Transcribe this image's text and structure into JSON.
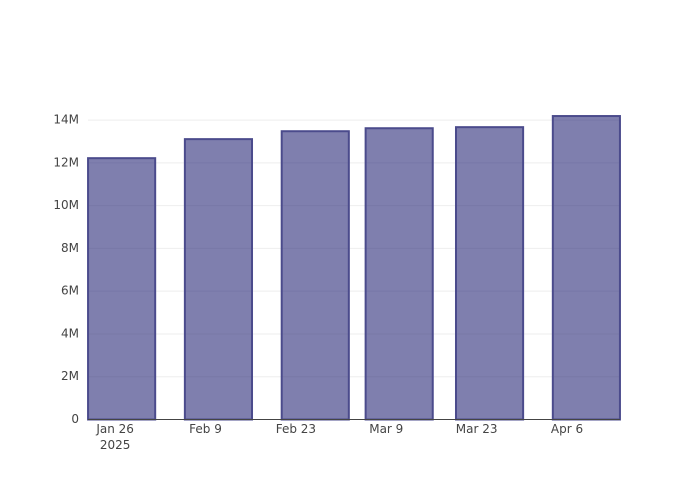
{
  "chart_data": {
    "type": "bar",
    "x": [
      "2025-01-27",
      "2025-02-11",
      "2025-02-26",
      "2025-03-11",
      "2025-03-25",
      "2025-04-09"
    ],
    "values": [
      12220000,
      13110000,
      13480000,
      13620000,
      13670000,
      14190000
    ],
    "color": "rgba(42,42,120,0.6)",
    "edge_color": "#4b4b8c",
    "bar_width_days": 10.4,
    "xlim": [
      "2025-01-21T19:00",
      "2025-04-14T05:00"
    ],
    "xticks": [
      {
        "value": "2025-01-26",
        "label": "Jan 26",
        "year": "2025"
      },
      {
        "value": "2025-02-09",
        "label": "Feb 9"
      },
      {
        "value": "2025-02-23",
        "label": "Feb 23"
      },
      {
        "value": "2025-03-09",
        "label": "Mar 9"
      },
      {
        "value": "2025-03-23",
        "label": "Mar 23"
      },
      {
        "value": "2025-04-06",
        "label": "Apr 6"
      }
    ],
    "ylim": [
      0,
      14940000
    ],
    "yticks": [
      0,
      {
        "value": 2000000,
        "label": "2M"
      },
      {
        "value": 4000000,
        "label": "4M"
      },
      {
        "value": 6000000,
        "label": "6M"
      },
      {
        "value": 8000000,
        "label": "8M"
      },
      {
        "value": 10000000,
        "label": "10M"
      },
      {
        "value": 12000000,
        "label": "12M"
      },
      {
        "value": 14000000,
        "label": "14M"
      }
    ],
    "grid": true
  }
}
